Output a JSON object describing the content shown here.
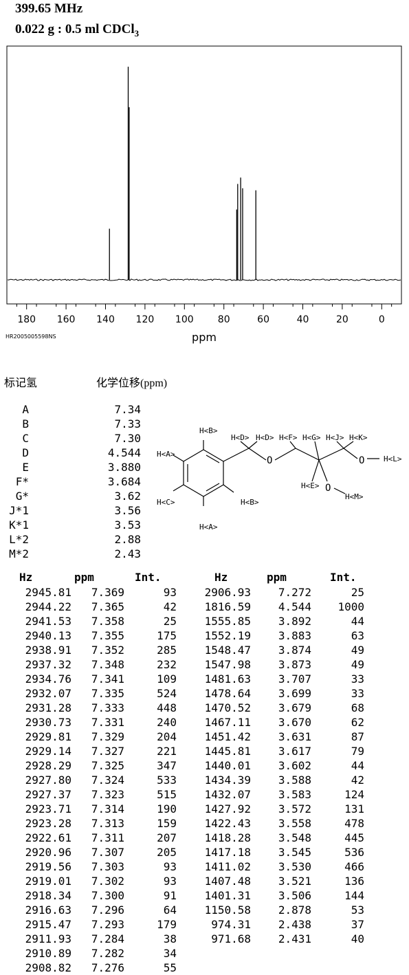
{
  "header": {
    "frequency": "399.65 MHz",
    "sample_prefix": "0.022 g : 0.5 ml CDCl",
    "sample_sub": "3"
  },
  "spectrum_code": "HR2005005598NS",
  "chart_data": {
    "type": "line",
    "xlabel": "ppm",
    "xlim": [
      190,
      -10
    ],
    "x_ticks": [
      180,
      160,
      140,
      120,
      100,
      80,
      60,
      40,
      20,
      0
    ],
    "tick_labels": [
      "180",
      "160",
      "140",
      "120",
      "100",
      "80",
      "60",
      "40",
      "20",
      "0"
    ],
    "peaks": [
      {
        "ppm": 138.0,
        "height": 0.24
      },
      {
        "ppm": 128.5,
        "height": 1.0
      },
      {
        "ppm": 128.0,
        "height": 0.81
      },
      {
        "ppm": 73.5,
        "height": 0.33
      },
      {
        "ppm": 73.0,
        "height": 0.45
      },
      {
        "ppm": 71.5,
        "height": 0.48
      },
      {
        "ppm": 70.5,
        "height": 0.43
      },
      {
        "ppm": 63.8,
        "height": 0.42
      }
    ],
    "grid": false,
    "legend": "none"
  },
  "assignment": {
    "col_label": "标记氢",
    "col_shift": "化学位移(ppm)",
    "rows": [
      {
        "label": "A",
        "shift": "7.34"
      },
      {
        "label": "B",
        "shift": "7.33"
      },
      {
        "label": "C",
        "shift": "7.30"
      },
      {
        "label": "D",
        "shift": "4.544"
      },
      {
        "label": "E",
        "shift": "3.880"
      },
      {
        "label": "F*",
        "shift": "3.684"
      },
      {
        "label": "G*",
        "shift": "3.62"
      },
      {
        "label": "J*1",
        "shift": "3.56"
      },
      {
        "label": "K*1",
        "shift": "3.53"
      },
      {
        "label": "L*2",
        "shift": "2.88"
      },
      {
        "label": "M*2",
        "shift": "2.43"
      }
    ]
  },
  "structure_labels": {
    "hb_top": "H<B>",
    "ha_left": "H<A>",
    "hc": "H<C>",
    "hb_bot": "H<B>",
    "ha_bot": "H<A>",
    "hd1": "H<D>",
    "hd2": "H<D>",
    "hf": "H<F>",
    "hg": "H<G>",
    "hj": "H<J>",
    "hk": "H<K>",
    "he": "H<E>",
    "hm": "H<M>",
    "hl": "H<L>",
    "o1": "O",
    "o2": "O",
    "o3": "O"
  },
  "peak_table": {
    "headers": [
      "Hz",
      "ppm",
      "Int.",
      "Hz",
      "ppm",
      "Int."
    ],
    "left": [
      [
        "2945.81",
        "7.369",
        "93"
      ],
      [
        "2944.22",
        "7.365",
        "42"
      ],
      [
        "2941.53",
        "7.358",
        "25"
      ],
      [
        "2940.13",
        "7.355",
        "175"
      ],
      [
        "2938.91",
        "7.352",
        "285"
      ],
      [
        "2937.32",
        "7.348",
        "232"
      ],
      [
        "2934.76",
        "7.341",
        "109"
      ],
      [
        "2932.07",
        "7.335",
        "524"
      ],
      [
        "2931.28",
        "7.333",
        "448"
      ],
      [
        "2930.73",
        "7.331",
        "240"
      ],
      [
        "2929.81",
        "7.329",
        "204"
      ],
      [
        "2929.14",
        "7.327",
        "221"
      ],
      [
        "2928.29",
        "7.325",
        "347"
      ],
      [
        "2927.80",
        "7.324",
        "533"
      ],
      [
        "2927.37",
        "7.323",
        "515"
      ],
      [
        "2923.71",
        "7.314",
        "190"
      ],
      [
        "2923.28",
        "7.313",
        "159"
      ],
      [
        "2922.61",
        "7.311",
        "207"
      ],
      [
        "2920.96",
        "7.307",
        "205"
      ],
      [
        "2919.56",
        "7.303",
        "93"
      ],
      [
        "2919.01",
        "7.302",
        "93"
      ],
      [
        "2918.34",
        "7.300",
        "91"
      ],
      [
        "2916.63",
        "7.296",
        "64"
      ],
      [
        "2915.47",
        "7.293",
        "179"
      ],
      [
        "2911.93",
        "7.284",
        "38"
      ],
      [
        "2910.89",
        "7.282",
        "34"
      ],
      [
        "2908.82",
        "7.276",
        "55"
      ]
    ],
    "right": [
      [
        "2906.93",
        "7.272",
        "25"
      ],
      [
        "1816.59",
        "4.544",
        "1000"
      ],
      [
        "1555.85",
        "3.892",
        "44"
      ],
      [
        "1552.19",
        "3.883",
        "63"
      ],
      [
        "1548.47",
        "3.874",
        "49"
      ],
      [
        "1547.98",
        "3.873",
        "49"
      ],
      [
        "1481.63",
        "3.707",
        "33"
      ],
      [
        "1478.64",
        "3.699",
        "33"
      ],
      [
        "1470.52",
        "3.679",
        "68"
      ],
      [
        "1467.11",
        "3.670",
        "62"
      ],
      [
        "1451.42",
        "3.631",
        "87"
      ],
      [
        "1445.81",
        "3.617",
        "79"
      ],
      [
        "1440.01",
        "3.602",
        "44"
      ],
      [
        "1434.39",
        "3.588",
        "42"
      ],
      [
        "1432.07",
        "3.583",
        "124"
      ],
      [
        "1427.92",
        "3.572",
        "131"
      ],
      [
        "1422.43",
        "3.558",
        "478"
      ],
      [
        "1418.28",
        "3.548",
        "445"
      ],
      [
        "1417.18",
        "3.545",
        "536"
      ],
      [
        "1411.02",
        "3.530",
        "466"
      ],
      [
        "1407.48",
        "3.521",
        "136"
      ],
      [
        "1401.31",
        "3.506",
        "144"
      ],
      [
        "1150.58",
        "2.878",
        "53"
      ],
      [
        "974.31",
        "2.438",
        "37"
      ],
      [
        "971.68",
        "2.431",
        "40"
      ]
    ]
  }
}
